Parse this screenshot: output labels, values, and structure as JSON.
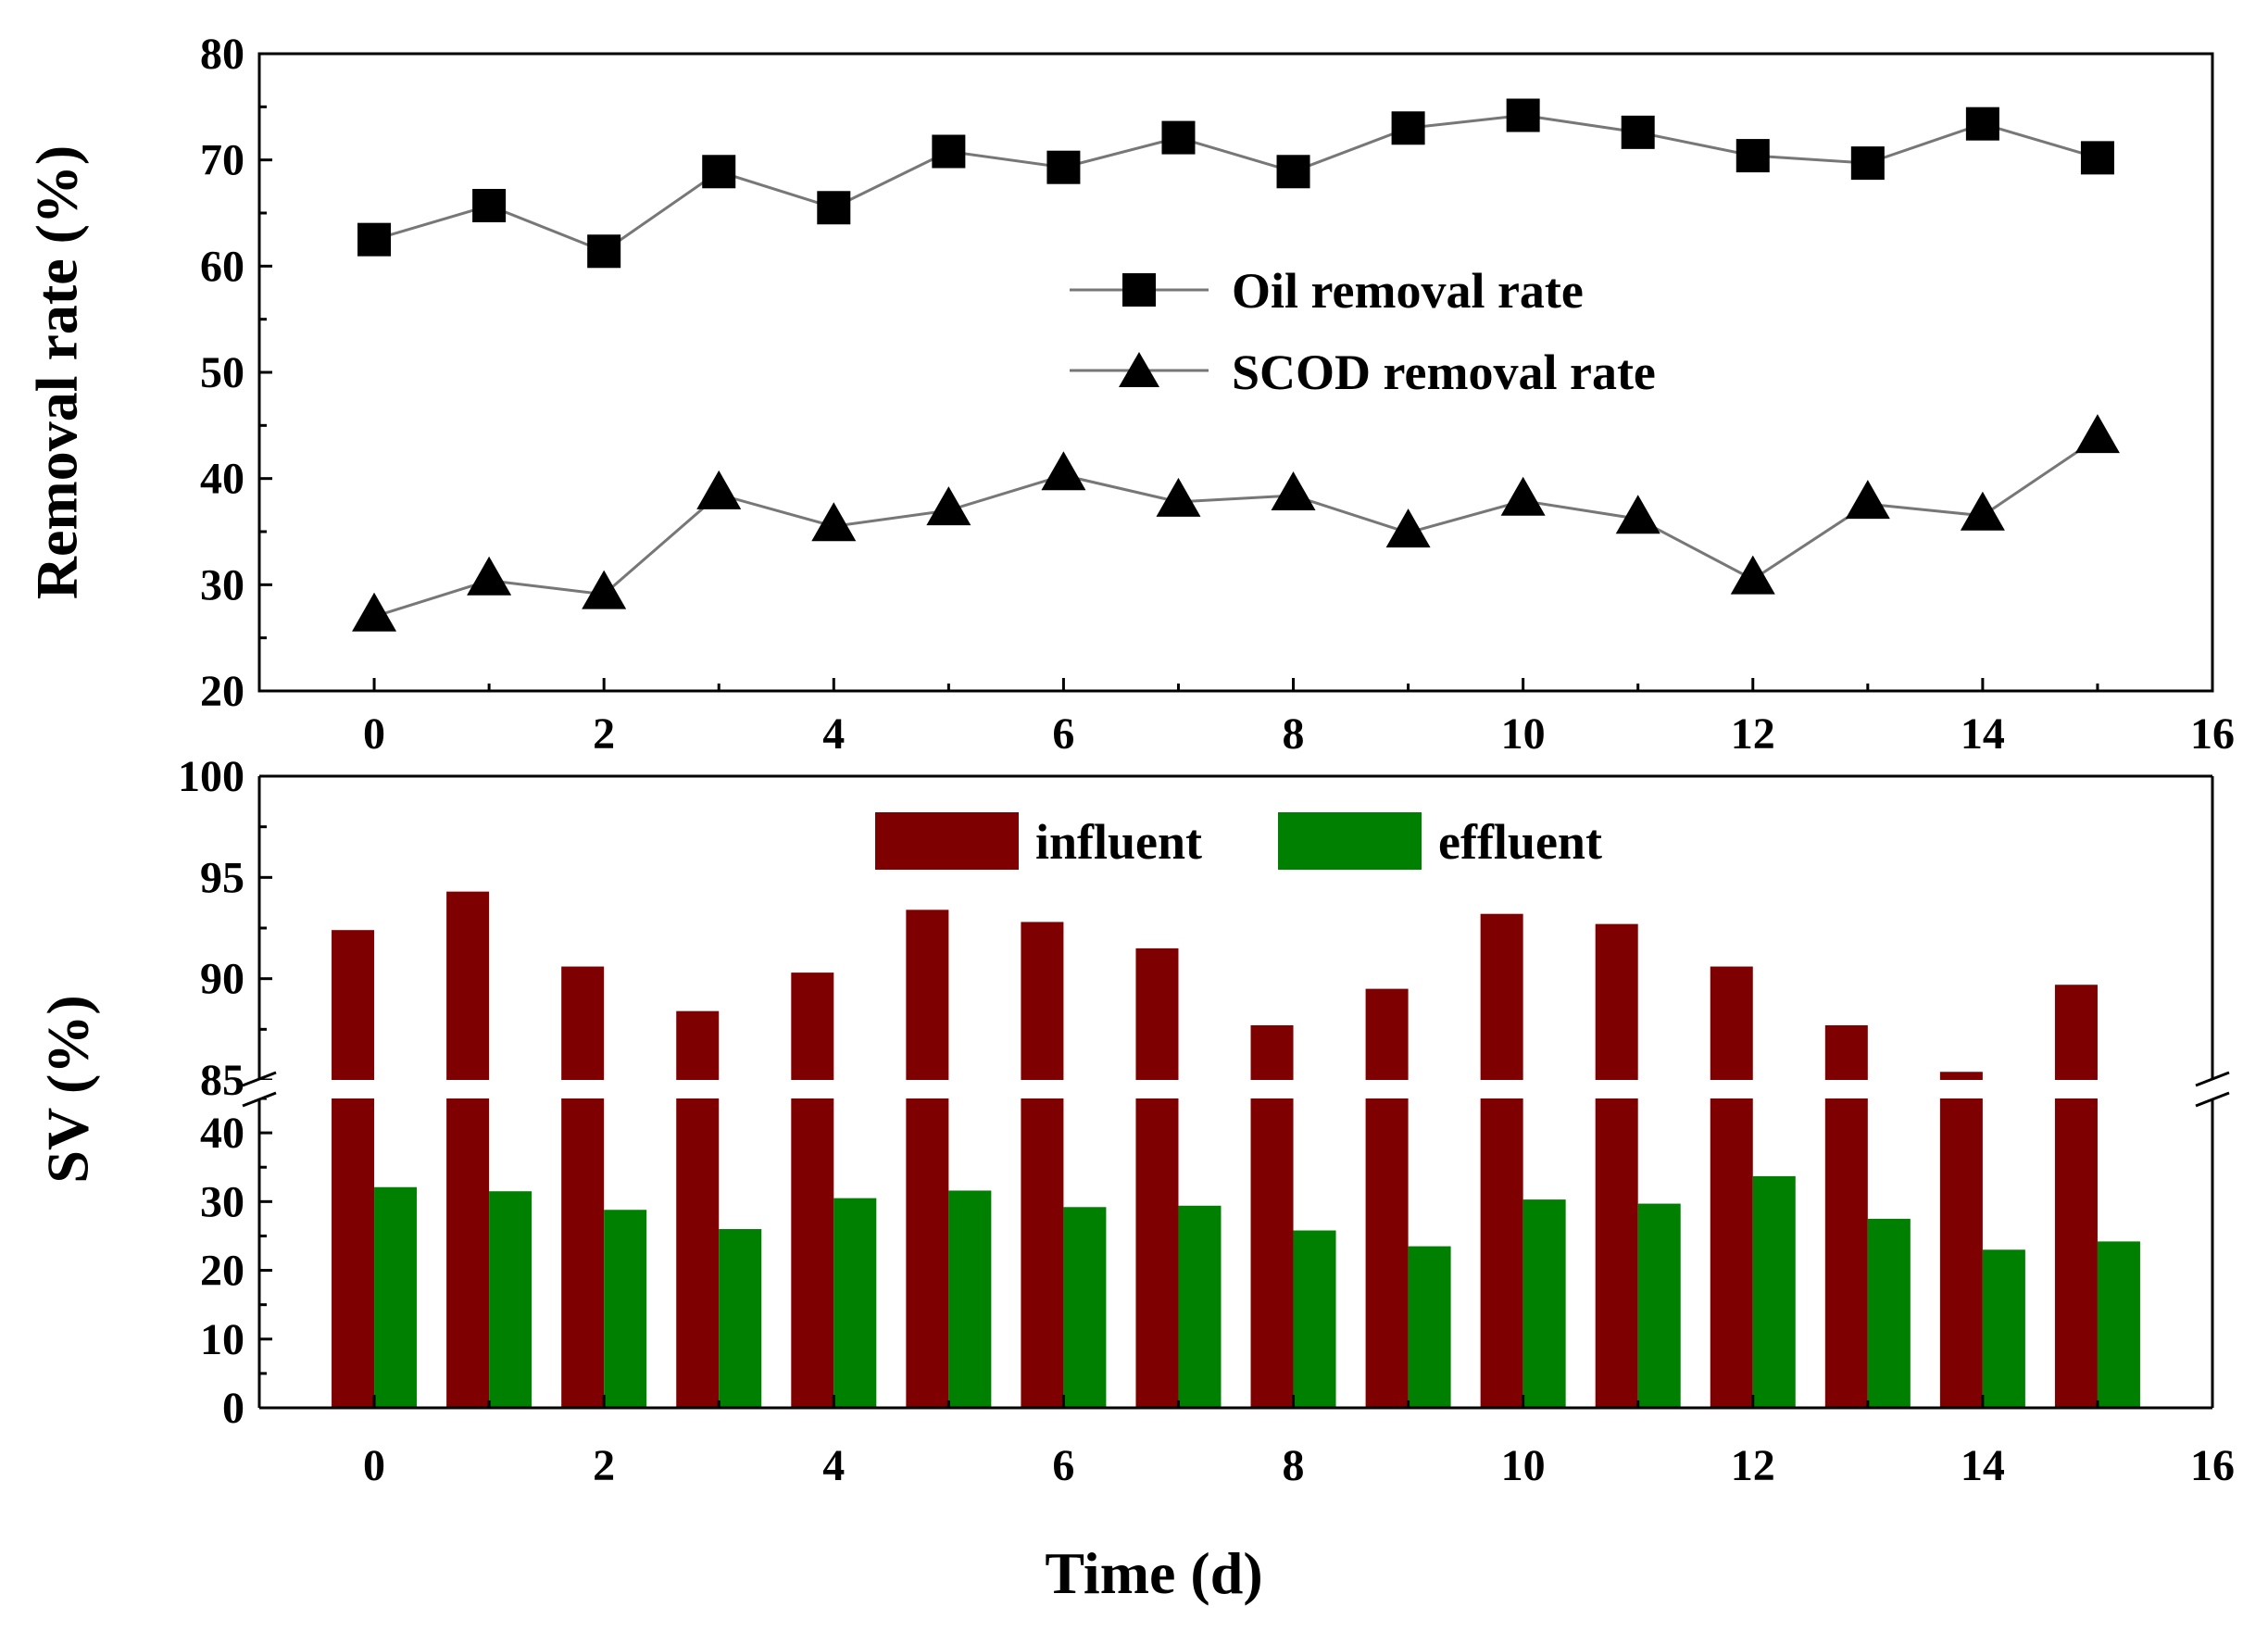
{
  "colors": {
    "influent": "#7f0000",
    "effluent": "#008000",
    "line": "#777777",
    "marker": "#000000"
  },
  "chart_data": [
    {
      "type": "line",
      "title": "",
      "xlabel": "",
      "ylabel": "Removal rate (%)",
      "xlim": [
        -1,
        16
      ],
      "ylim": [
        20,
        80
      ],
      "xticks": [
        "0",
        "2",
        "4",
        "6",
        "8",
        "10",
        "12",
        "14",
        "16"
      ],
      "yticks": [
        "20",
        "30",
        "40",
        "50",
        "60",
        "70",
        "80"
      ],
      "legend_position": "center-right",
      "x": [
        0,
        1,
        2,
        3,
        4,
        5,
        6,
        7,
        8,
        9,
        10,
        11,
        12,
        13,
        14,
        15
      ],
      "series": [
        {
          "name": "Oil removal rate",
          "marker": "square",
          "values": [
            62.5,
            65.7,
            61.4,
            68.9,
            65.5,
            70.8,
            69.3,
            72.1,
            68.9,
            73.0,
            74.2,
            72.6,
            70.4,
            69.7,
            73.4,
            70.2
          ]
        },
        {
          "name": "SCOD removal rate",
          "marker": "triangle",
          "values": [
            27.0,
            30.4,
            29.1,
            38.5,
            35.5,
            37.0,
            40.3,
            37.8,
            38.4,
            34.9,
            37.9,
            36.2,
            30.5,
            37.6,
            36.5,
            43.8
          ]
        }
      ]
    },
    {
      "type": "bar",
      "title": "",
      "xlabel": "Time (d)",
      "ylabel": "SV (%)",
      "xlim": [
        -1,
        16
      ],
      "ylim_lower": [
        0,
        45
      ],
      "ylim_upper": [
        85,
        100
      ],
      "axis_break": true,
      "xticks": [
        "0",
        "2",
        "4",
        "6",
        "8",
        "10",
        "12",
        "14",
        "16"
      ],
      "yticks_lower": [
        "0",
        "10",
        "20",
        "30",
        "40"
      ],
      "yticks_upper": [
        "85",
        "90",
        "95",
        "100"
      ],
      "legend_position": "top-center",
      "x": [
        0,
        1,
        2,
        3,
        4,
        5,
        6,
        7,
        8,
        9,
        10,
        11,
        12,
        13,
        14,
        15
      ],
      "series": [
        {
          "name": "influent",
          "values": [
            92.4,
            94.3,
            90.6,
            88.4,
            90.3,
            93.4,
            92.8,
            91.5,
            87.7,
            89.5,
            93.2,
            92.7,
            90.6,
            87.7,
            85.4,
            89.7
          ]
        },
        {
          "name": "effluent",
          "values": [
            32.1,
            31.5,
            28.8,
            26.0,
            30.5,
            31.6,
            29.2,
            29.4,
            25.8,
            23.5,
            30.3,
            29.7,
            33.7,
            27.5,
            23.0,
            24.2
          ]
        }
      ]
    }
  ]
}
